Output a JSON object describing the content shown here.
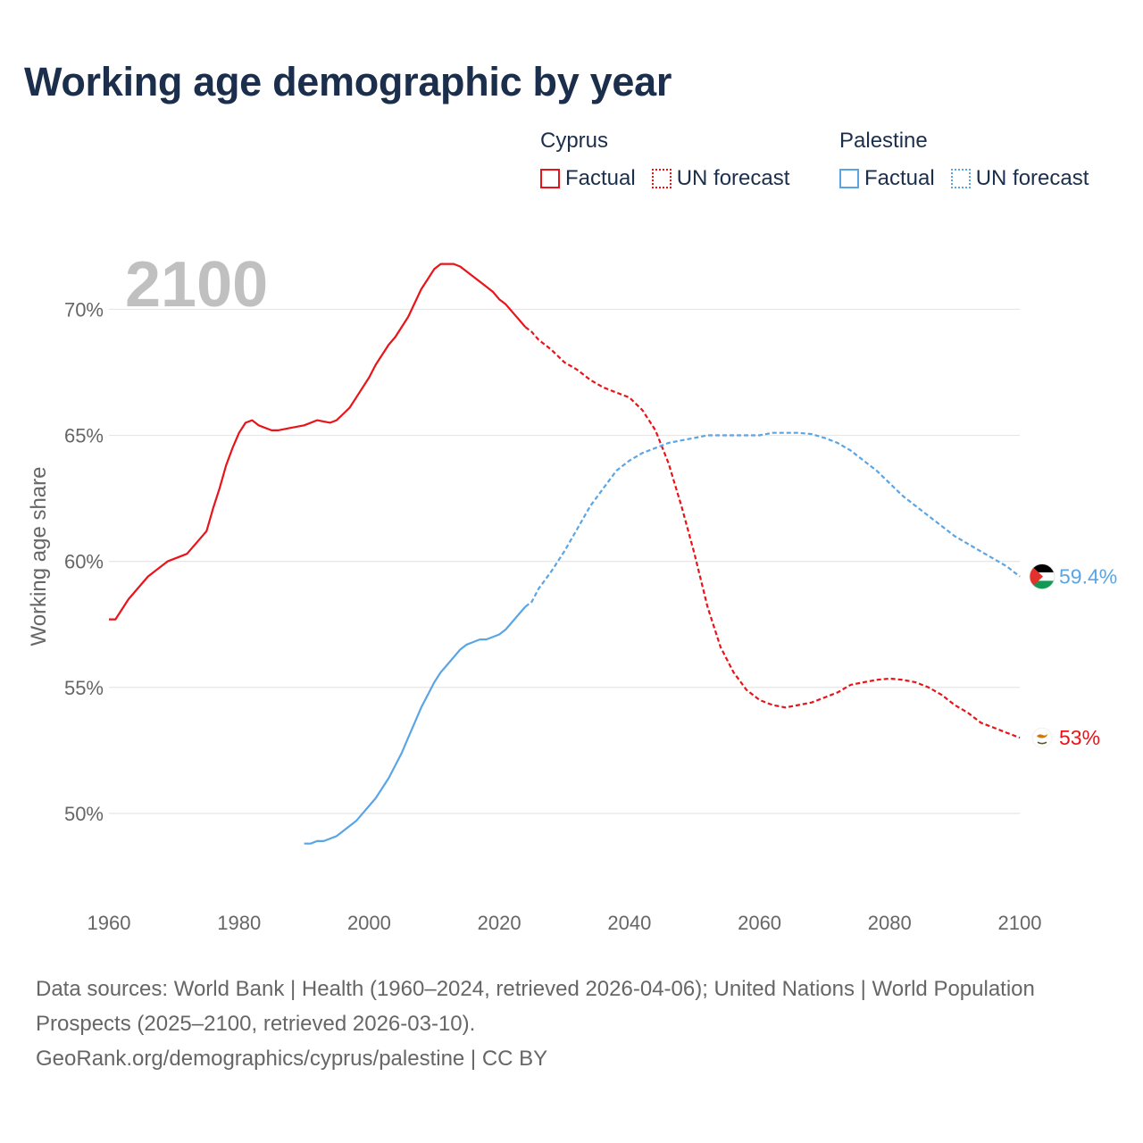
{
  "title": "Working age demographic by year",
  "legend": {
    "groups": [
      {
        "country": "Cyprus",
        "factual_label": "Factual",
        "forecast_label": "UN forecast",
        "color": "#e8141a"
      },
      {
        "country": "Palestine",
        "factual_label": "Factual",
        "forecast_label": "UN forecast",
        "color": "#5aa5e6"
      }
    ]
  },
  "chart_data": {
    "type": "line",
    "title": "Working age demographic by year",
    "year_label": "2100",
    "xlabel": "",
    "ylabel": "Working age share",
    "xlim": [
      1960,
      2100
    ],
    "ylim": [
      46.7,
      72
    ],
    "x_ticks": [
      1960,
      1980,
      2000,
      2020,
      2040,
      2060,
      2080,
      2100
    ],
    "y_ticks": [
      {
        "value": 50,
        "label": "50%"
      },
      {
        "value": 55,
        "label": "55%"
      },
      {
        "value": 60,
        "label": "60%"
      },
      {
        "value": 65,
        "label": "65%"
      },
      {
        "value": 70,
        "label": "70%"
      }
    ],
    "grid": true,
    "series": [
      {
        "name": "Cyprus",
        "color": "#e8141a",
        "factual_range": "1960–2024",
        "forecast_range": "2025–2100",
        "end_label": "53%",
        "flag": "cyprus-flag-icon",
        "points": [
          [
            1960,
            57.7
          ],
          [
            1961,
            57.7
          ],
          [
            1963,
            58.5
          ],
          [
            1966,
            59.4
          ],
          [
            1969,
            60.0
          ],
          [
            1972,
            60.3
          ],
          [
            1975,
            61.2
          ],
          [
            1976,
            62.1
          ],
          [
            1977,
            62.9
          ],
          [
            1978,
            63.8
          ],
          [
            1979,
            64.5
          ],
          [
            1980,
            65.1
          ],
          [
            1981,
            65.5
          ],
          [
            1982,
            65.6
          ],
          [
            1983,
            65.4
          ],
          [
            1985,
            65.2
          ],
          [
            1986,
            65.2
          ],
          [
            1988,
            65.3
          ],
          [
            1990,
            65.4
          ],
          [
            1992,
            65.6
          ],
          [
            1994,
            65.5
          ],
          [
            1995,
            65.6
          ],
          [
            1997,
            66.1
          ],
          [
            1998,
            66.5
          ],
          [
            2000,
            67.3
          ],
          [
            2001,
            67.8
          ],
          [
            2003,
            68.6
          ],
          [
            2004,
            68.9
          ],
          [
            2006,
            69.7
          ],
          [
            2008,
            70.8
          ],
          [
            2009,
            71.2
          ],
          [
            2010,
            71.6
          ],
          [
            2011,
            71.8
          ],
          [
            2012,
            71.8
          ],
          [
            2013,
            71.8
          ],
          [
            2014,
            71.7
          ],
          [
            2016,
            71.3
          ],
          [
            2018,
            70.9
          ],
          [
            2019,
            70.7
          ],
          [
            2020,
            70.4
          ],
          [
            2021,
            70.2
          ],
          [
            2022,
            69.9
          ],
          [
            2023,
            69.6
          ],
          [
            2024,
            69.3
          ],
          [
            2025,
            69.1
          ],
          [
            2026,
            68.8
          ],
          [
            2028,
            68.4
          ],
          [
            2030,
            67.9
          ],
          [
            2032,
            67.6
          ],
          [
            2034,
            67.2
          ],
          [
            2036,
            66.9
          ],
          [
            2038,
            66.7
          ],
          [
            2040,
            66.5
          ],
          [
            2042,
            66.0
          ],
          [
            2044,
            65.2
          ],
          [
            2046,
            63.9
          ],
          [
            2048,
            62.2
          ],
          [
            2050,
            60.3
          ],
          [
            2052,
            58.2
          ],
          [
            2054,
            56.6
          ],
          [
            2056,
            55.6
          ],
          [
            2058,
            54.9
          ],
          [
            2060,
            54.5
          ],
          [
            2062,
            54.3
          ],
          [
            2064,
            54.2
          ],
          [
            2066,
            54.3
          ],
          [
            2068,
            54.4
          ],
          [
            2070,
            54.6
          ],
          [
            2072,
            54.8
          ],
          [
            2074,
            55.1
          ],
          [
            2076,
            55.2
          ],
          [
            2078,
            55.3
          ],
          [
            2080,
            55.35
          ],
          [
            2082,
            55.3
          ],
          [
            2084,
            55.2
          ],
          [
            2086,
            55.0
          ],
          [
            2088,
            54.7
          ],
          [
            2090,
            54.3
          ],
          [
            2092,
            54.0
          ],
          [
            2094,
            53.6
          ],
          [
            2096,
            53.4
          ],
          [
            2098,
            53.2
          ],
          [
            2100,
            53.0
          ]
        ]
      },
      {
        "name": "Palestine",
        "color": "#5aa5e6",
        "factual_range": "1990–2024",
        "forecast_range": "2025–2100",
        "end_label": "59.4%",
        "flag": "palestine-flag-icon",
        "points": [
          [
            1990,
            48.8
          ],
          [
            1991,
            48.8
          ],
          [
            1992,
            48.9
          ],
          [
            1993,
            48.9
          ],
          [
            1994,
            49.0
          ],
          [
            1995,
            49.1
          ],
          [
            1996,
            49.3
          ],
          [
            1998,
            49.7
          ],
          [
            2000,
            50.3
          ],
          [
            2001,
            50.6
          ],
          [
            2002,
            51.0
          ],
          [
            2003,
            51.4
          ],
          [
            2004,
            51.9
          ],
          [
            2005,
            52.4
          ],
          [
            2006,
            53.0
          ],
          [
            2007,
            53.6
          ],
          [
            2008,
            54.2
          ],
          [
            2009,
            54.7
          ],
          [
            2010,
            55.2
          ],
          [
            2011,
            55.6
          ],
          [
            2012,
            55.9
          ],
          [
            2013,
            56.2
          ],
          [
            2014,
            56.5
          ],
          [
            2015,
            56.7
          ],
          [
            2016,
            56.8
          ],
          [
            2017,
            56.9
          ],
          [
            2018,
            56.9
          ],
          [
            2020,
            57.1
          ],
          [
            2021,
            57.3
          ],
          [
            2022,
            57.6
          ],
          [
            2023,
            57.9
          ],
          [
            2024,
            58.2
          ],
          [
            2025,
            58.4
          ],
          [
            2026,
            58.9
          ],
          [
            2028,
            59.6
          ],
          [
            2030,
            60.4
          ],
          [
            2032,
            61.3
          ],
          [
            2034,
            62.2
          ],
          [
            2036,
            62.9
          ],
          [
            2038,
            63.6
          ],
          [
            2040,
            64.0
          ],
          [
            2042,
            64.3
          ],
          [
            2044,
            64.5
          ],
          [
            2046,
            64.7
          ],
          [
            2048,
            64.8
          ],
          [
            2050,
            64.9
          ],
          [
            2052,
            65.0
          ],
          [
            2054,
            65.0
          ],
          [
            2056,
            65.0
          ],
          [
            2058,
            65.0
          ],
          [
            2060,
            65.0
          ],
          [
            2062,
            65.1
          ],
          [
            2064,
            65.1
          ],
          [
            2066,
            65.1
          ],
          [
            2068,
            65.05
          ],
          [
            2070,
            64.9
          ],
          [
            2072,
            64.7
          ],
          [
            2074,
            64.4
          ],
          [
            2076,
            64.0
          ],
          [
            2078,
            63.6
          ],
          [
            2080,
            63.1
          ],
          [
            2082,
            62.6
          ],
          [
            2084,
            62.2
          ],
          [
            2086,
            61.8
          ],
          [
            2088,
            61.4
          ],
          [
            2090,
            61.0
          ],
          [
            2092,
            60.7
          ],
          [
            2094,
            60.4
          ],
          [
            2096,
            60.1
          ],
          [
            2098,
            59.8
          ],
          [
            2100,
            59.4
          ]
        ]
      }
    ]
  },
  "footer": {
    "line1": "Data sources: World Bank | Health (1960–2024, retrieved 2026-04-06); United Nations | World Population Prospects (2025–2100, retrieved 2026-03-10).",
    "line2": "GeoRank.org/demographics/cyprus/palestine | CC BY"
  },
  "colors": {
    "title": "#1b2f4d",
    "grid": "#e6e6e6",
    "axis_text": "#666666",
    "year_watermark": "#c0c0c0"
  }
}
